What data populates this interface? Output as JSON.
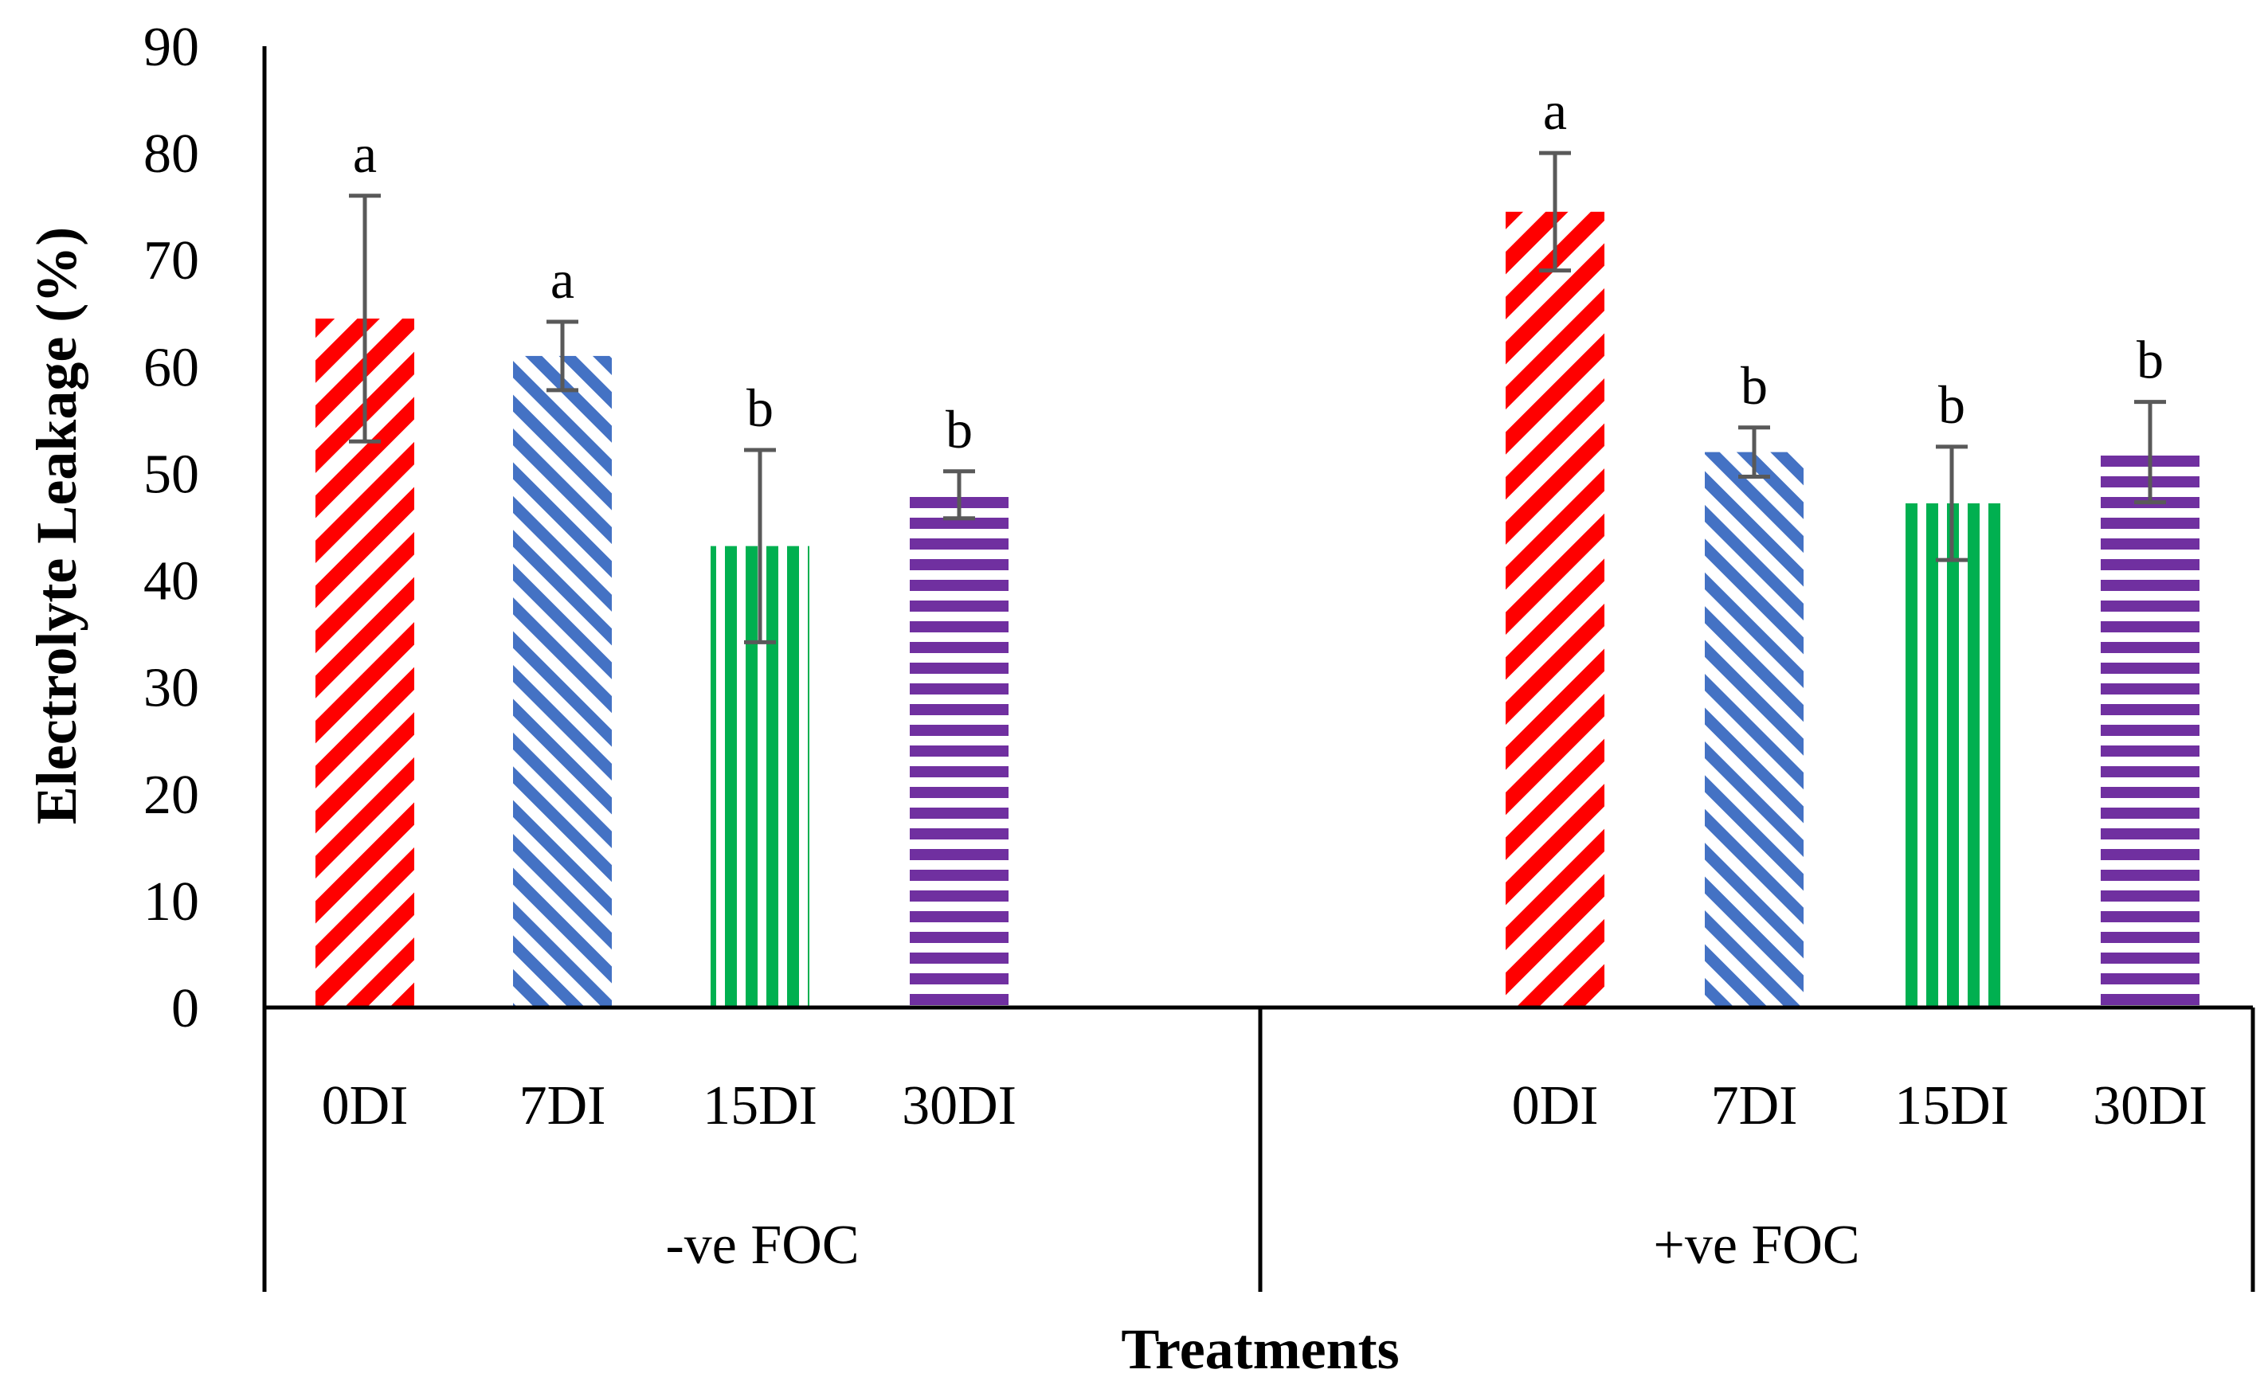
{
  "chart_data": {
    "type": "bar",
    "xlabel": "Treatments",
    "ylabel": "Electrolyte Leakage (%)",
    "ylim": [
      0,
      90
    ],
    "yticks": [
      0,
      10,
      20,
      30,
      40,
      50,
      60,
      70,
      80,
      90
    ],
    "grid": false,
    "legend": "none",
    "groups": [
      {
        "label": "-ve FOC",
        "bars": [
          {
            "category": "0DI",
            "value": 64.5,
            "error": 11.5,
            "letter": "a"
          },
          {
            "category": "7DI",
            "value": 61.0,
            "error": 3.2,
            "letter": "a"
          },
          {
            "category": "15DI",
            "value": 43.2,
            "error": 9.0,
            "letter": "b"
          },
          {
            "category": "30DI",
            "value": 48.0,
            "error": 2.2,
            "letter": "b"
          }
        ]
      },
      {
        "label": "+ve FOC",
        "bars": [
          {
            "category": "0DI",
            "value": 74.5,
            "error": 5.5,
            "letter": "a"
          },
          {
            "category": "7DI",
            "value": 52.0,
            "error": 2.3,
            "letter": "b"
          },
          {
            "category": "15DI",
            "value": 47.2,
            "error": 5.3,
            "letter": "b"
          },
          {
            "category": "30DI",
            "value": 52.0,
            "error": 4.7,
            "letter": "b"
          }
        ]
      }
    ],
    "series_styles": [
      {
        "category": "0DI",
        "color": "#ff0000",
        "pattern": "diagonal-down"
      },
      {
        "category": "7DI",
        "color": "#4472c4",
        "pattern": "diagonal-up"
      },
      {
        "category": "15DI",
        "color": "#00b050",
        "pattern": "vertical"
      },
      {
        "category": "30DI",
        "color": "#7030a0",
        "pattern": "horizontal"
      }
    ],
    "error_bar_color": "#595959"
  }
}
